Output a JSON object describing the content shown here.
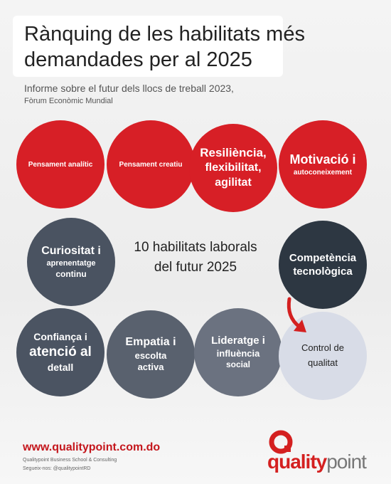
{
  "header": {
    "title": [
      "Rànquing de les habilitats més",
      "demandades per al 2025"
    ],
    "subtitle": [
      "Informe sobre el futur dels llocs de treball 2023,",
      "Fòrum Econòmic Mundial"
    ]
  },
  "center": [
    "10 habilitats laborals",
    "del futur 2025"
  ],
  "circles": [
    {
      "lines": [
        "Pensament analític"
      ]
    },
    {
      "lines": [
        "Pensament creatiu"
      ]
    },
    {
      "lines": [
        "Resiliència,",
        "flexibilitat,",
        "agilitat"
      ]
    },
    {
      "lines": [
        "Motivació i",
        "autoconeixement"
      ]
    },
    {
      "lines": [
        "Curiositat i",
        "aprenentatge",
        "continu"
      ]
    },
    {
      "lines": [
        "Competència",
        "tecnològica"
      ]
    },
    {
      "lines": [
        "Confiança i",
        "atenció al",
        "detall"
      ]
    },
    {
      "lines": [
        "Empatia i",
        "escolta",
        "activa"
      ]
    },
    {
      "lines": [
        "Lideratge i",
        "influència",
        "social"
      ]
    },
    {
      "lines": [
        "Control de",
        "qualitat"
      ]
    }
  ],
  "footer": {
    "url": "www.qualitypoint.com.do",
    "company": "Qualitypoint Business School & Consulting",
    "follow": "Segueix-nos: @qualitypointRD",
    "logo": [
      "quality",
      "point"
    ]
  }
}
